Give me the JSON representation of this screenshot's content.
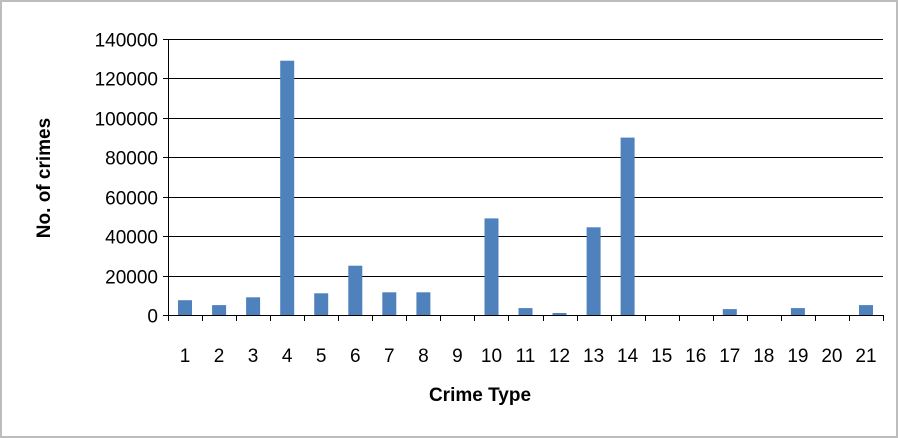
{
  "chart_data": {
    "type": "bar",
    "title": "",
    "xlabel": "Crime Type",
    "ylabel": "No. of crimes",
    "categories": [
      "1",
      "2",
      "3",
      "4",
      "5",
      "6",
      "7",
      "8",
      "9",
      "10",
      "11",
      "12",
      "13",
      "14",
      "15",
      "16",
      "17",
      "18",
      "19",
      "20",
      "21"
    ],
    "values": [
      7500,
      5000,
      9000,
      129000,
      11000,
      25000,
      11500,
      11500,
      0,
      49000,
      3500,
      1000,
      44500,
      90000,
      0,
      0,
      3000,
      0,
      3500,
      0,
      5000
    ],
    "ylim": [
      0,
      140000
    ],
    "yticks": [
      "0",
      "20000",
      "40000",
      "60000",
      "80000",
      "100000",
      "120000",
      "140000"
    ],
    "grid": true,
    "legend": "none",
    "bar_color": "#4f81bd",
    "grid_color": "#000000",
    "frame_color": "#bdbdbd"
  }
}
